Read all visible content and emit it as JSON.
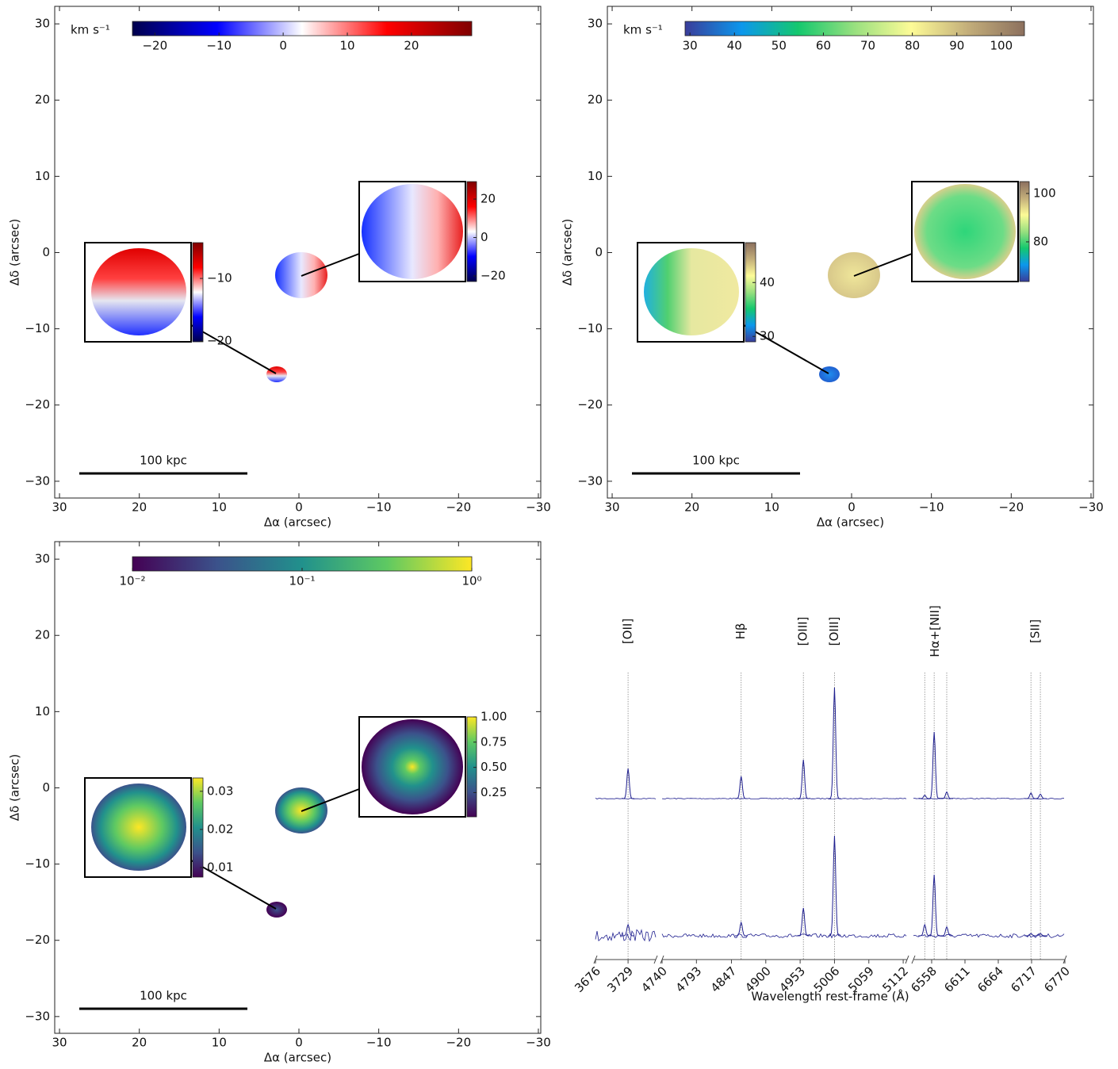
{
  "chart_data": [
    {
      "type": "map",
      "xlabel": "Δα (arcsec)",
      "ylabel": "Δδ (arcsec)",
      "xlim": [
        30.6,
        -30.3
      ],
      "ylim": [
        -32.2,
        32.3
      ],
      "xticks": [
        30,
        20,
        10,
        0,
        {
          "value": -10,
          "label": "−10"
        },
        {
          "value": -20,
          "label": "−20"
        },
        {
          "value": -30,
          "label": "−30"
        }
      ],
      "yticks": [
        {
          "value": -30,
          "label": "−30"
        },
        {
          "value": -20,
          "label": "−20"
        },
        {
          "value": -10,
          "label": "−10"
        },
        0,
        10,
        20,
        30
      ],
      "scalebar_label": "100 kpc",
      "colorbar": {
        "label": "km s⁻¹",
        "lim": [
          -23.5,
          29.4
        ],
        "ticks": [
          {
            "value": -20,
            "label": "−20"
          },
          {
            "value": -10,
            "label": "−10"
          },
          0,
          10,
          20
        ],
        "colors": [
          "#00004c",
          "#0000ff",
          "#ffffff",
          "#ff0000",
          "#7f0000"
        ]
      },
      "insets": [
        {
          "colorbar": {
            "lim": [
              -20.1,
              -4.3
            ],
            "ticks": [
              {
                "value": -10,
                "label": "−10"
              },
              {
                "value": -20,
                "label": "−20"
              }
            ],
            "colors": [
              "#00004c",
              "#0000ff",
              "#ffffff",
              "#ff0000",
              "#7f0000"
            ]
          }
        },
        {
          "colorbar": {
            "lim": [
              -22.9,
              29.1
            ],
            "ticks": [
              20,
              0,
              {
                "value": -20,
                "label": "−20"
              }
            ],
            "colors": [
              "#00004c",
              "#0000ff",
              "#ffffff",
              "#ff0000",
              "#7f0000"
            ]
          }
        }
      ]
    },
    {
      "type": "map",
      "xlabel": "Δα (arcsec)",
      "ylabel": "Δδ (arcsec)",
      "xlim": [
        30.6,
        -30.3
      ],
      "ylim": [
        -32.2,
        32.3
      ],
      "xticks": [
        30,
        20,
        10,
        0,
        {
          "value": -10,
          "label": "−10"
        },
        {
          "value": -20,
          "label": "−20"
        },
        {
          "value": -30,
          "label": "−30"
        }
      ],
      "yticks": [
        {
          "value": -30,
          "label": "−30"
        },
        {
          "value": -20,
          "label": "−20"
        },
        {
          "value": -10,
          "label": "−10"
        },
        0,
        10,
        20,
        30
      ],
      "scalebar_label": "100 kpc",
      "colorbar": {
        "label": "km s⁻¹",
        "lim": [
          28.9,
          105.2
        ],
        "ticks": [
          30,
          40,
          50,
          60,
          70,
          80,
          90,
          100
        ],
        "colors": [
          "#3a3d9a",
          "#0c97ec",
          "#14c86e",
          "#99e07f",
          "#fdfb97",
          "#c3ae7a",
          "#8c705e"
        ]
      },
      "insets": [
        {
          "colorbar": {
            "lim": [
              29.0,
              47.4
            ],
            "ticks": [
              40,
              30
            ],
            "colors": [
              "#3a3d9a",
              "#0c97ec",
              "#14c86e",
              "#99e07f",
              "#fdfb97",
              "#c3ae7a",
              "#8c705e"
            ]
          }
        },
        {
          "colorbar": {
            "lim": [
              63.6,
              104.9
            ],
            "ticks": [
              100,
              80
            ],
            "colors": [
              "#3a3d9a",
              "#0c97ec",
              "#14c86e",
              "#99e07f",
              "#fdfb97",
              "#c3ae7a",
              "#8c705e"
            ]
          }
        }
      ]
    },
    {
      "type": "map",
      "xlabel": "Δα (arcsec)",
      "ylabel": "Δδ (arcsec)",
      "xlim": [
        30.6,
        -30.3
      ],
      "ylim": [
        -32.2,
        32.3
      ],
      "xticks": [
        30,
        20,
        10,
        0,
        {
          "value": -10,
          "label": "−10"
        },
        {
          "value": -20,
          "label": "−20"
        },
        {
          "value": -30,
          "label": "−30"
        }
      ],
      "yticks": [
        {
          "value": -30,
          "label": "−30"
        },
        {
          "value": -20,
          "label": "−20"
        },
        {
          "value": -10,
          "label": "−10"
        },
        0,
        10,
        20,
        30
      ],
      "scalebar_label": "100 kpc",
      "colorbar": {
        "log": true,
        "lim": [
          0.01,
          1
        ],
        "ticks": [
          {
            "value": 0.01,
            "label": "10⁻²"
          },
          {
            "value": 0.1,
            "label": "10⁻¹"
          },
          {
            "value": 1,
            "label": "10⁰"
          }
        ],
        "colors": [
          "#440154",
          "#3b528b",
          "#21918c",
          "#5ec962",
          "#fde725"
        ]
      },
      "insets": [
        {
          "colorbar": {
            "lim": [
              0.0075,
              0.0335
            ],
            "ticks": [
              0.03,
              0.02,
              0.01
            ],
            "colors": [
              "#440154",
              "#3b528b",
              "#21918c",
              "#5ec962",
              "#fde725"
            ]
          }
        },
        {
          "colorbar": {
            "lim": [
              0.01,
              1.0
            ],
            "ticks": [
              {
                "value": 1,
                "label": "1.00"
              },
              0.75,
              {
                "value": 0.5,
                "label": "0.50"
              },
              0.25
            ],
            "colors": [
              "#440154",
              "#3b528b",
              "#21918c",
              "#5ec962",
              "#fde725"
            ]
          }
        }
      ]
    },
    {
      "type": "spectrum",
      "xlabel": "Wavelength rest-frame (Å)",
      "segments": [
        {
          "xlim": [
            3676,
            3774
          ],
          "xticks": [
            3676,
            3729
          ]
        },
        {
          "xlim": [
            4740,
            5118
          ],
          "xticks": [
            4740,
            4793,
            4847,
            4900,
            4953,
            5006,
            5059,
            5112
          ]
        },
        {
          "xlim": [
            6529,
            6770
          ],
          "xticks": [
            6558,
            6611,
            6664,
            6717,
            6770
          ]
        }
      ],
      "lines": [
        {
          "label": "[OII]",
          "wavelengths": [
            3729
          ]
        },
        {
          "label": "Hβ",
          "wavelengths": [
            4862
          ]
        },
        {
          "label": "[OIII]",
          "wavelengths": [
            4958
          ]
        },
        {
          "label": "[OIII]",
          "wavelengths": [
            5006
          ]
        },
        {
          "label": "Hα+[NII]",
          "wavelengths": [
            6547,
            6562,
            6582
          ]
        },
        {
          "label": "[SII]",
          "wavelengths": [
            6716,
            6731
          ]
        }
      ],
      "series": [
        {
          "color": "#1f1f8f",
          "values": [
            0.27,
            0.2,
            0.35,
            1.0,
            0.03,
            0.6,
            0.06,
            0.05,
            0.04
          ]
        },
        {
          "color": "#1f1f8f",
          "values": [
            0.1,
            0.12,
            0.25,
            0.9,
            0.1,
            0.55,
            0.08,
            0.02,
            0.02
          ]
        }
      ]
    }
  ]
}
